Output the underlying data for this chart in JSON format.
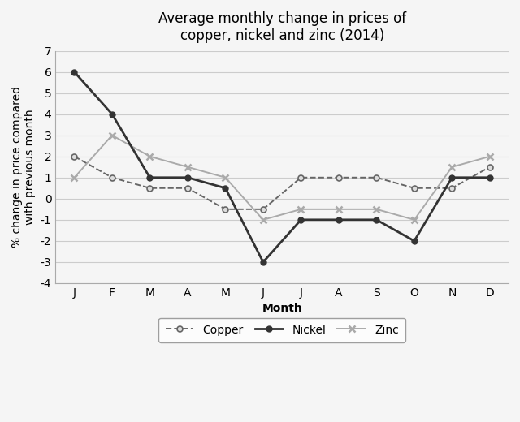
{
  "title": "Average monthly change in prices of\ncopper, nickel and zinc (2014)",
  "xlabel": "Month",
  "ylabel": "% change in price compared\nwith previous month",
  "months": [
    "J",
    "F",
    "M",
    "A",
    "M",
    "J",
    "J",
    "A",
    "S",
    "O",
    "N",
    "D"
  ],
  "copper": [
    2,
    1,
    0.5,
    0.5,
    -0.5,
    -0.5,
    1,
    1,
    1,
    0.5,
    0.5,
    1.5
  ],
  "nickel": [
    6,
    4,
    1,
    1,
    0.5,
    -3,
    -1,
    -1,
    -1,
    -2,
    1,
    1
  ],
  "zinc": [
    1,
    3,
    2,
    1.5,
    1,
    -1,
    -0.5,
    -0.5,
    -0.5,
    -1,
    1.5,
    2
  ],
  "ylim": [
    -4,
    7
  ],
  "yticks": [
    -4,
    -3,
    -2,
    -1,
    0,
    1,
    2,
    3,
    4,
    5,
    6,
    7
  ],
  "copper_color": "#666666",
  "nickel_color": "#333333",
  "zinc_color": "#aaaaaa",
  "background_color": "#f5f5f5",
  "grid_color": "#cccccc",
  "title_fontsize": 12,
  "label_fontsize": 10,
  "tick_fontsize": 10,
  "legend_fontsize": 10
}
